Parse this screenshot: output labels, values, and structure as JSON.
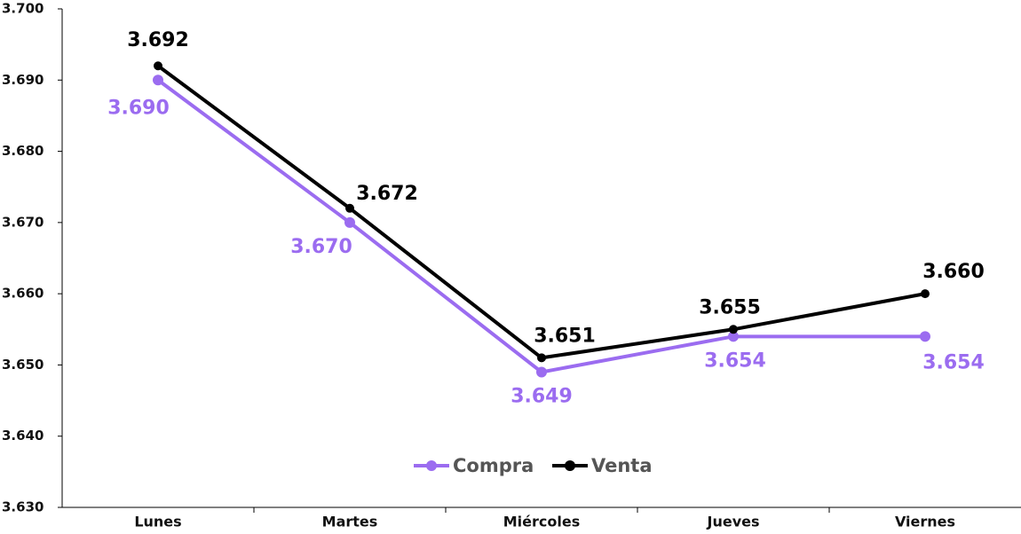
{
  "chart_data": {
    "type": "line",
    "categories": [
      "Lunes",
      "Martes",
      "Miércoles",
      "Jueves",
      "Viernes"
    ],
    "series": [
      {
        "name": "Compra",
        "color": "#9b6cf0",
        "values": [
          3.69,
          3.67,
          3.649,
          3.654,
          3.654
        ],
        "value_labels": [
          "3.690",
          "3.670",
          "3.649",
          "3.654",
          "3.654"
        ]
      },
      {
        "name": "Venta",
        "color": "#000000",
        "values": [
          3.692,
          3.672,
          3.651,
          3.655,
          3.66
        ],
        "value_labels": [
          "3.692",
          "3.672",
          "3.651",
          "3.655",
          "3.660"
        ]
      }
    ],
    "ylim": [
      3.63,
      3.7
    ],
    "yticks": [
      {
        "value": 3.63,
        "label": "3.630"
      },
      {
        "value": 3.64,
        "label": "3.640"
      },
      {
        "value": 3.65,
        "label": "3.650"
      },
      {
        "value": 3.66,
        "label": "3.660"
      },
      {
        "value": 3.67,
        "label": "3.670"
      },
      {
        "value": 3.68,
        "label": "3.680"
      },
      {
        "value": 3.69,
        "label": "3.690"
      },
      {
        "value": 3.7,
        "label": "3.700"
      }
    ],
    "grid": false,
    "legend": "bottom"
  }
}
